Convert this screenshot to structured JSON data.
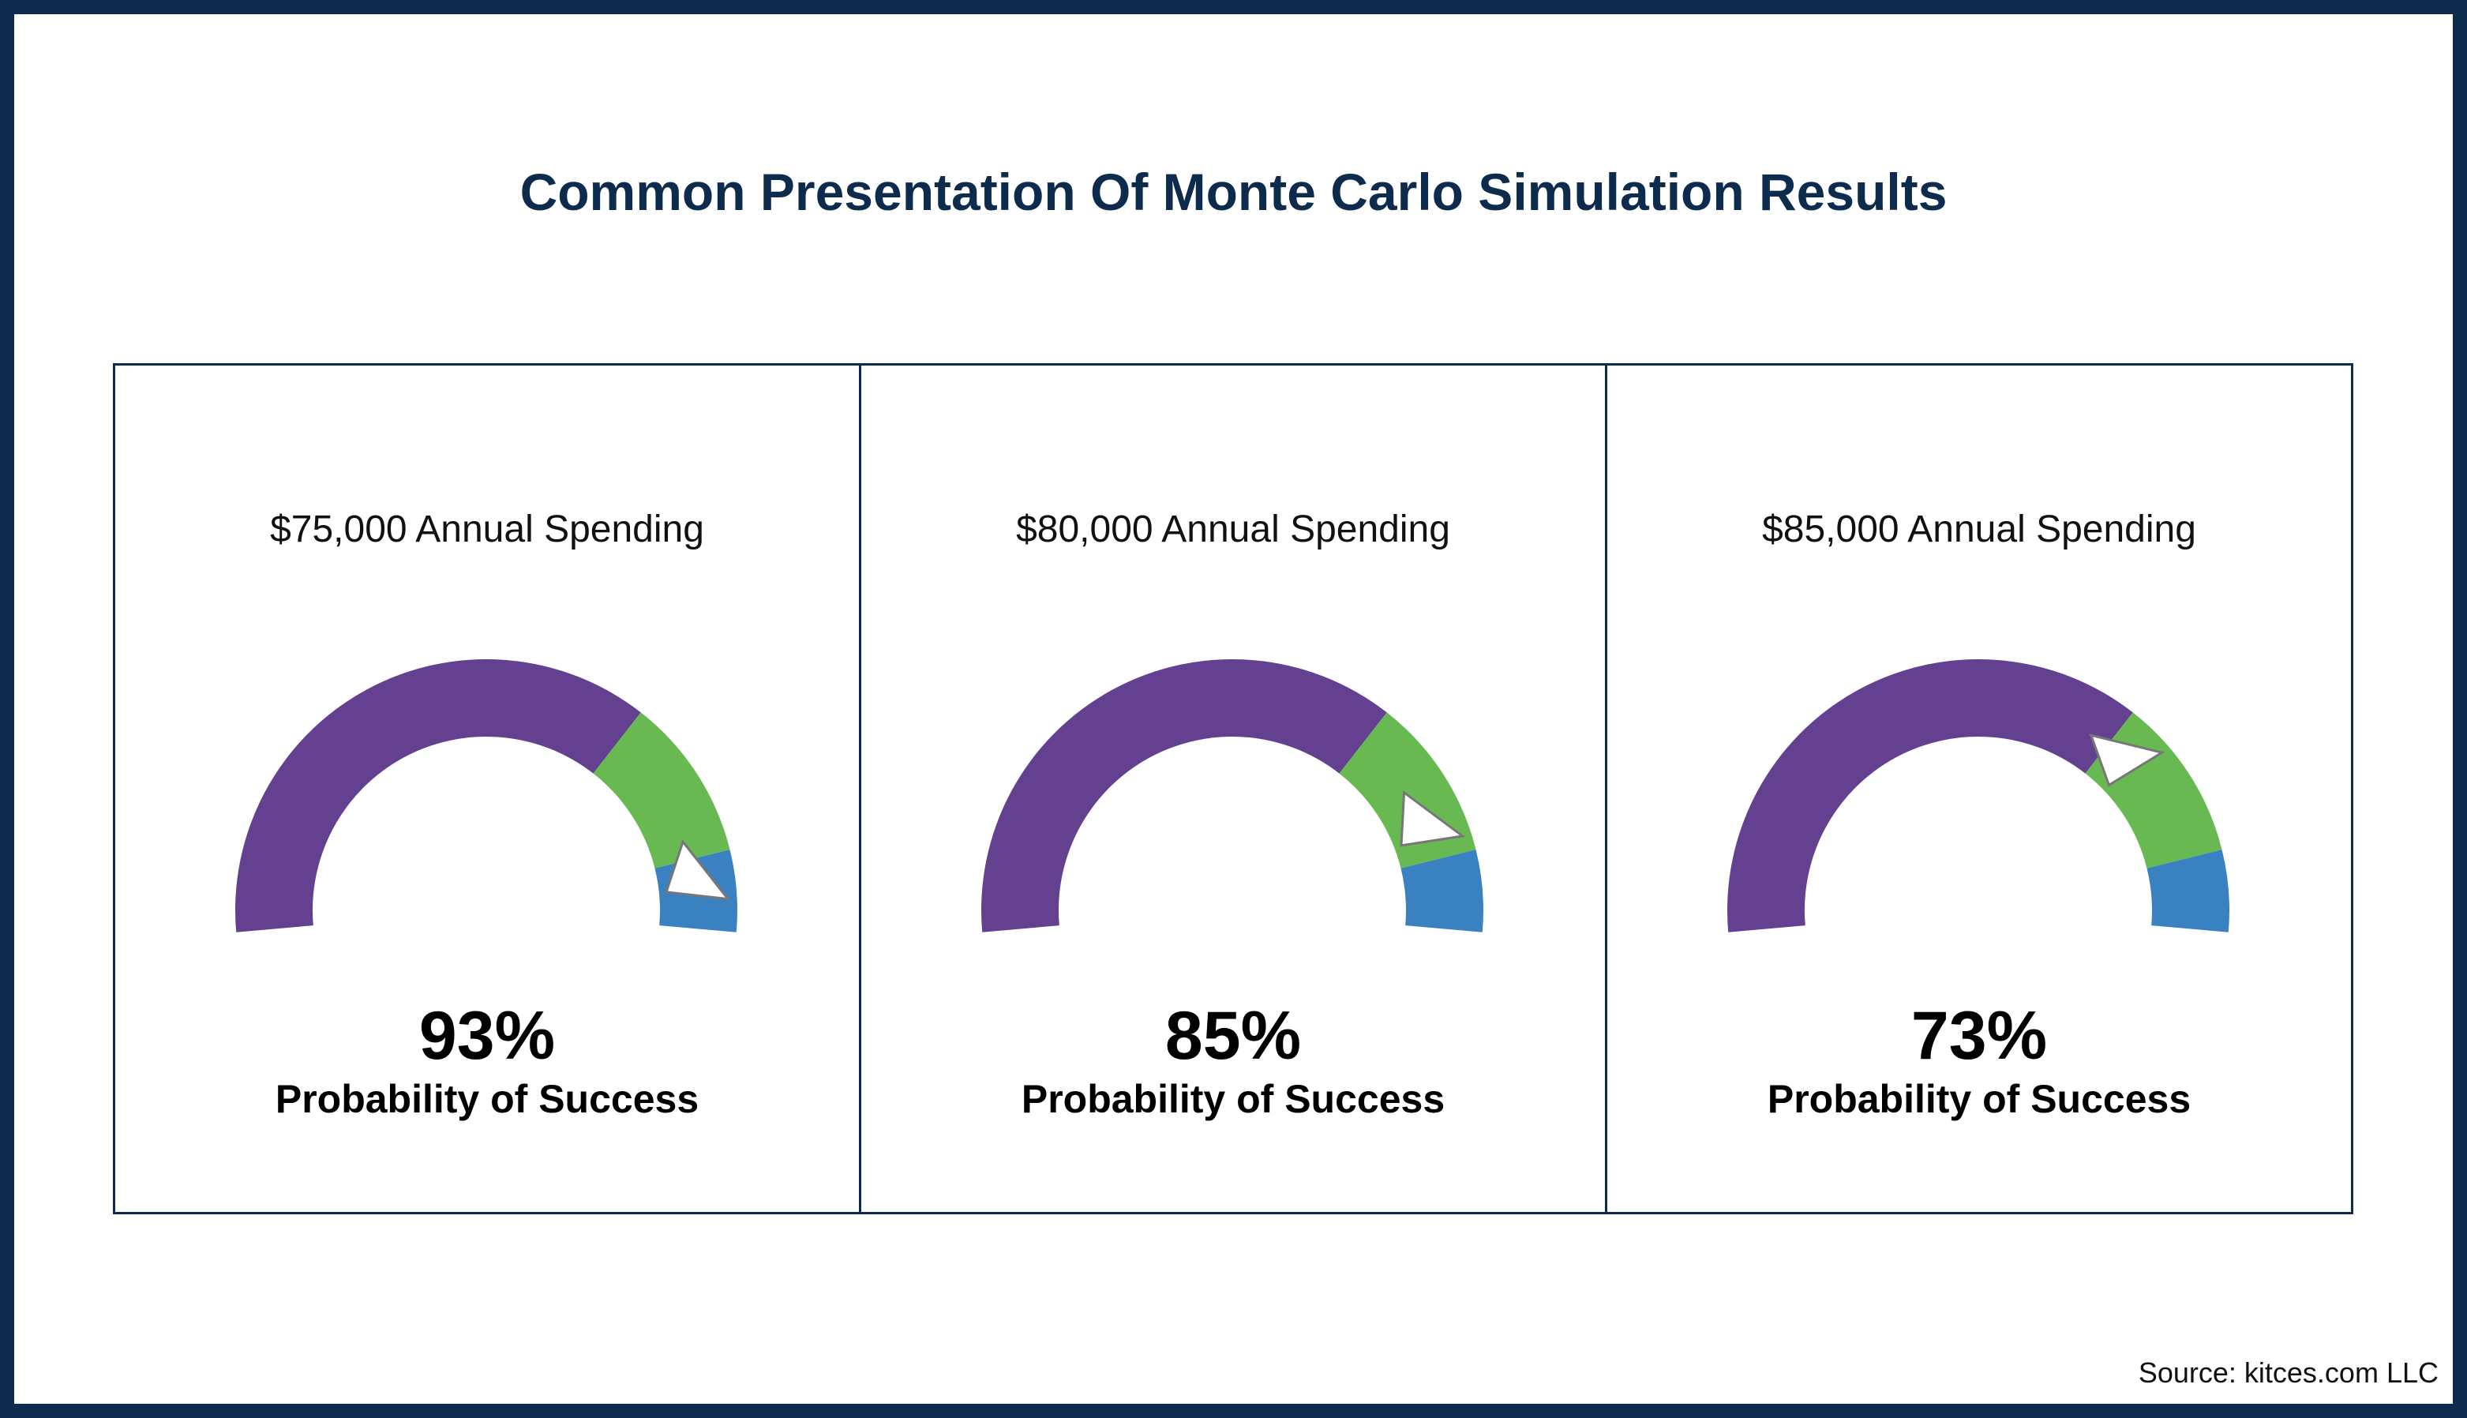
{
  "title": "Common Presentation Of Monte Carlo Simulation Results",
  "source": "Source: kitces.com LLC",
  "colors": {
    "border": "#0d2b4c",
    "purple": "#634190",
    "green": "#69b952",
    "blue": "#3981c0",
    "pointer_stroke": "#777777"
  },
  "chart_data": [
    {
      "type": "gauge",
      "title": "$75,000 Annual Spending",
      "value_label": "93%",
      "label": "Probability of Success",
      "value": 93,
      "range": [
        0,
        100
      ],
      "bands": [
        {
          "color": "purple",
          "from": 0,
          "to": 70
        },
        {
          "color": "green",
          "from": 70,
          "to": 90
        },
        {
          "color": "blue",
          "from": 90,
          "to": 100
        }
      ]
    },
    {
      "type": "gauge",
      "title": "$80,000 Annual Spending",
      "value_label": "85%",
      "label": "Probability of Success",
      "value": 85,
      "range": [
        0,
        100
      ],
      "bands": [
        {
          "color": "purple",
          "from": 0,
          "to": 70
        },
        {
          "color": "green",
          "from": 70,
          "to": 90
        },
        {
          "color": "blue",
          "from": 90,
          "to": 100
        }
      ]
    },
    {
      "type": "gauge",
      "title": "$85,000 Annual Spending",
      "value_label": "73%",
      "label": "Probability of Success",
      "value": 73,
      "range": [
        0,
        100
      ],
      "bands": [
        {
          "color": "purple",
          "from": 0,
          "to": 70
        },
        {
          "color": "green",
          "from": 70,
          "to": 90
        },
        {
          "color": "blue",
          "from": 90,
          "to": 100
        }
      ]
    }
  ]
}
